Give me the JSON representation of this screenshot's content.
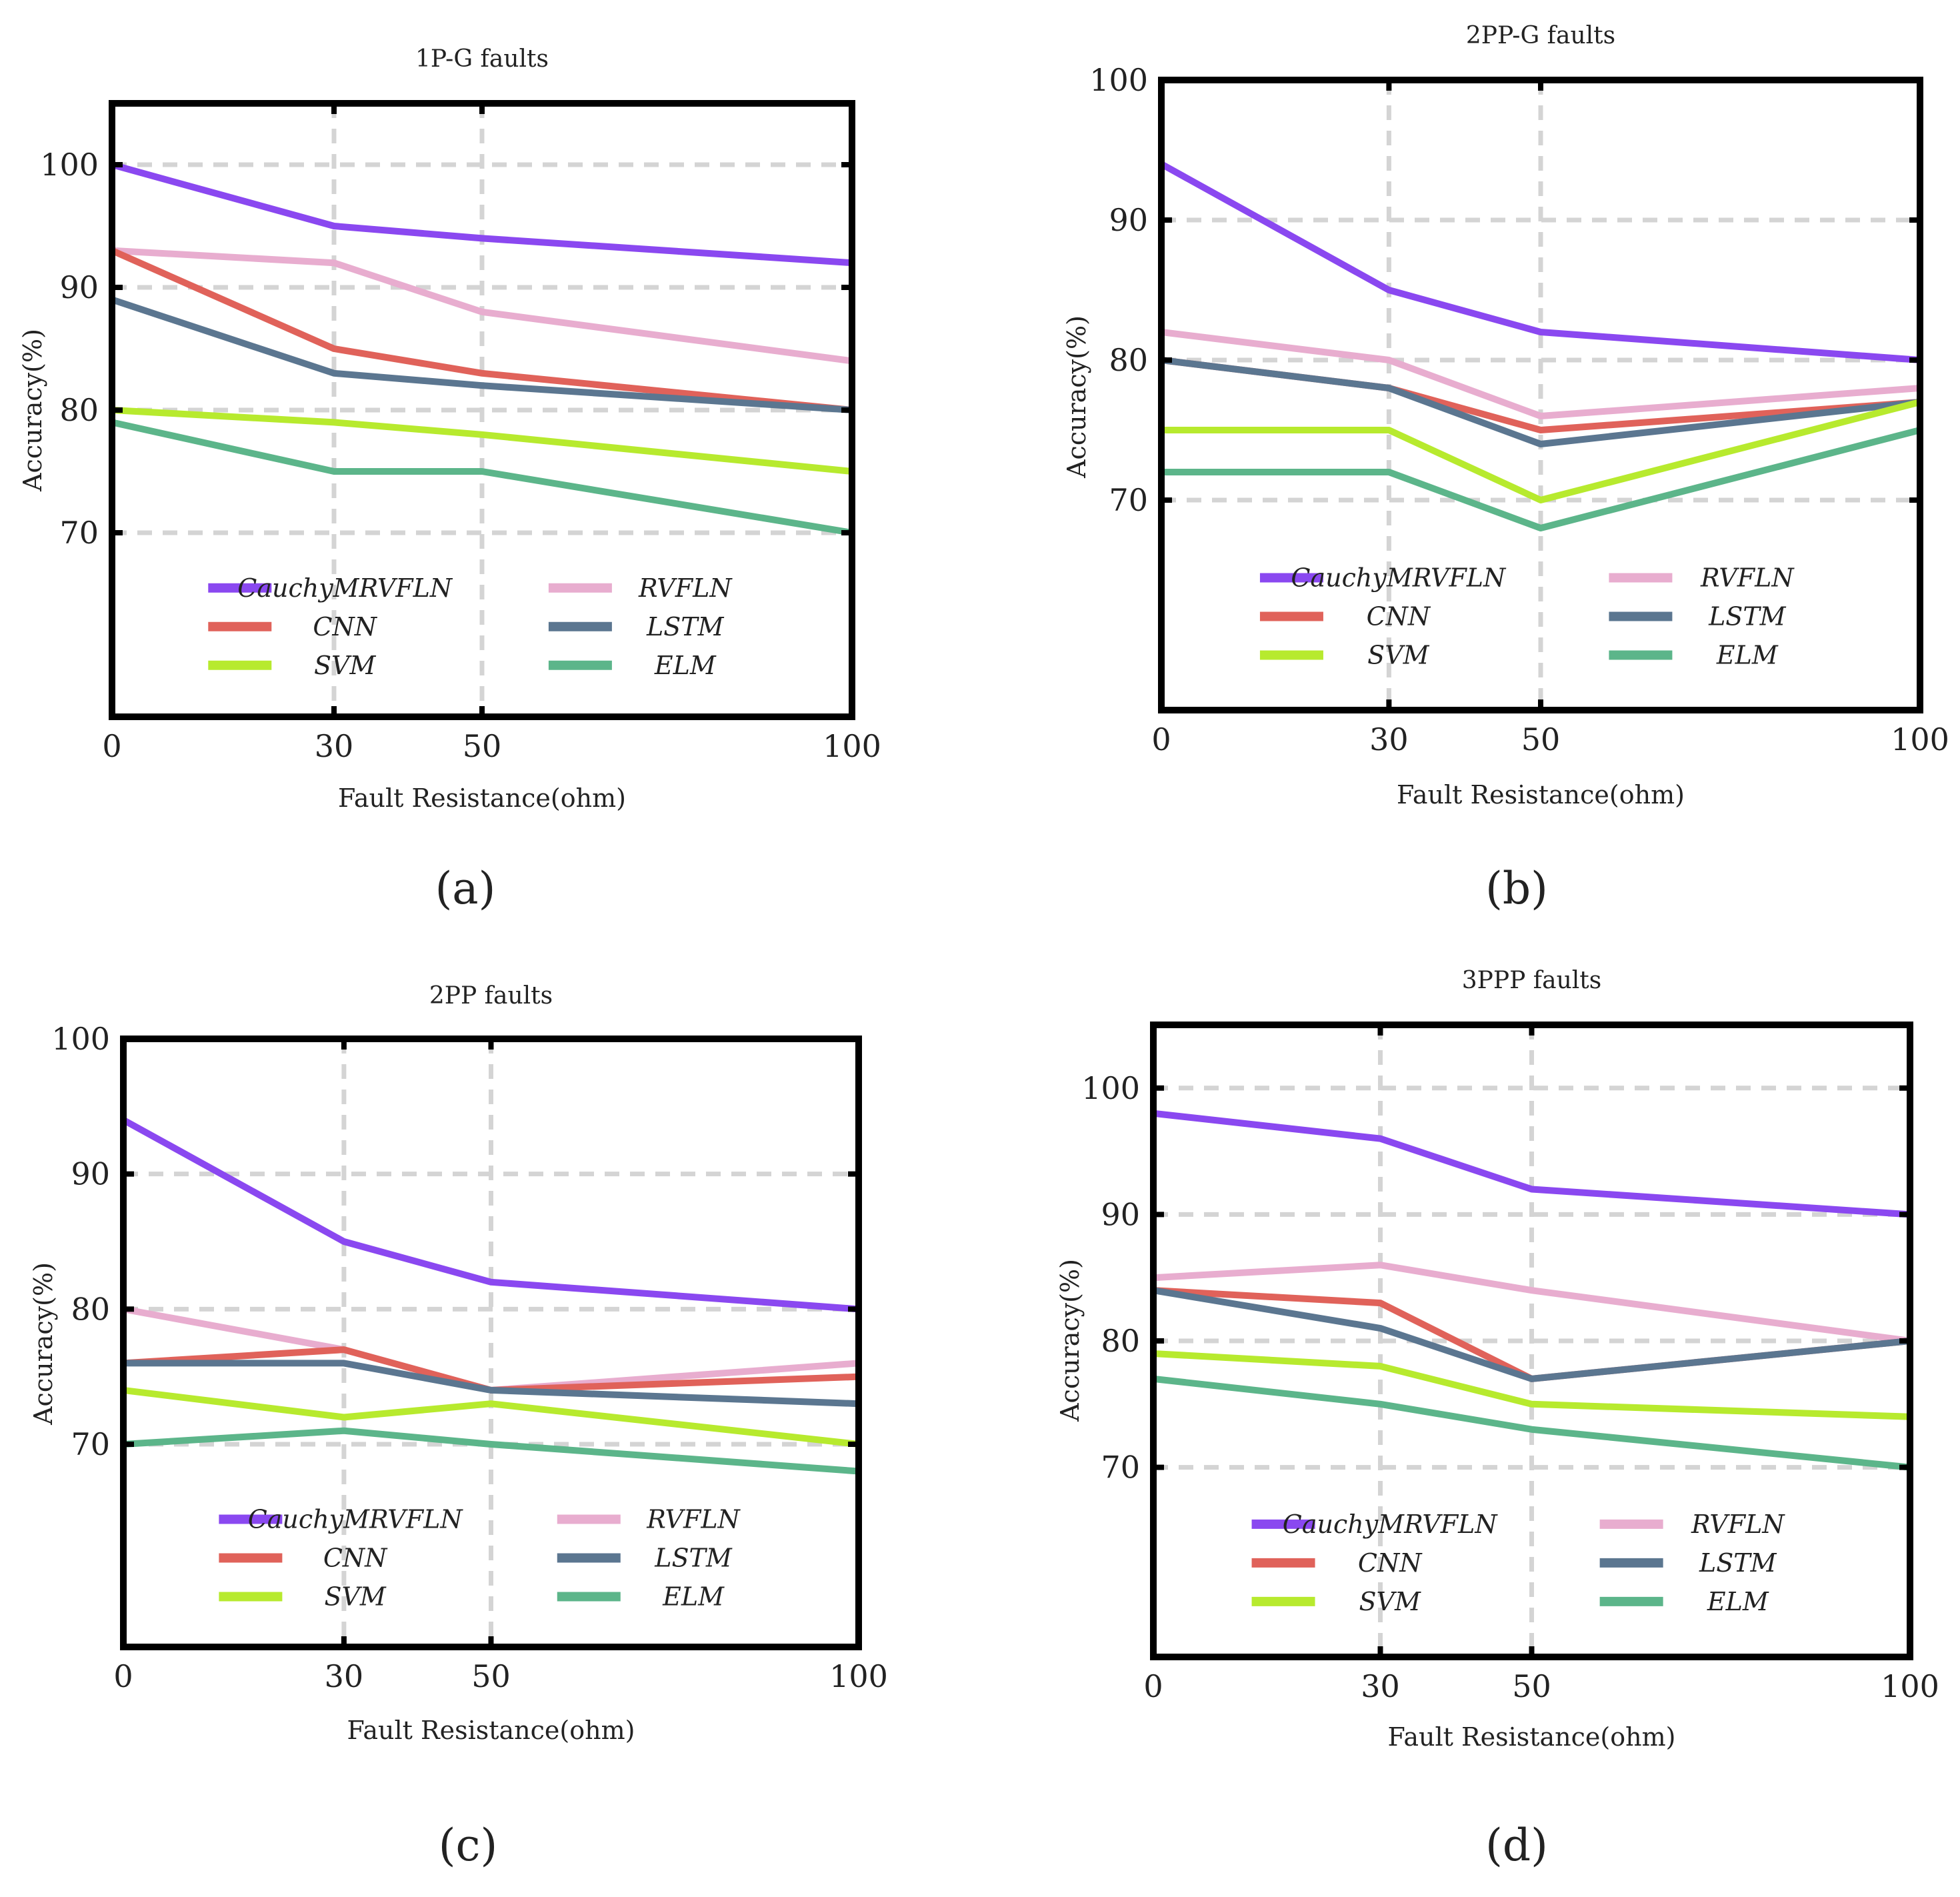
{
  "panel_labels": [
    "(a)",
    "(b)",
    "(c)",
    "(d)"
  ],
  "colors": {
    "CauchyMRVFLN": "#8a48f0",
    "RVFLN": "#e8adcf",
    "CNN": "#e0625a",
    "LSTM": "#5b7690",
    "SVM": "#b7ea2e",
    "ELM": "#5cb58a"
  },
  "chart_data": [
    {
      "type": "line",
      "title": "1P-G faults",
      "xlabel": "Fault Resistance(ohm)",
      "ylabel": "Accuracy(%)",
      "x": [
        0,
        30,
        50,
        100
      ],
      "xticks": [
        "0",
        "30",
        "50",
        "100"
      ],
      "yticks": [
        70,
        80,
        90,
        100
      ],
      "ylim": [
        55,
        105
      ],
      "grid": true,
      "legend": "lower center, 2 columns",
      "series": [
        {
          "name": "CauchyMRVFLN",
          "values": [
            100,
            95,
            94,
            92
          ]
        },
        {
          "name": "RVFLN",
          "values": [
            93,
            92,
            88,
            84
          ]
        },
        {
          "name": "CNN",
          "values": [
            93,
            85,
            83,
            80
          ]
        },
        {
          "name": "LSTM",
          "values": [
            89,
            83,
            82,
            80
          ]
        },
        {
          "name": "SVM",
          "values": [
            80,
            79,
            78,
            75
          ]
        },
        {
          "name": "ELM",
          "values": [
            79,
            75,
            75,
            70
          ]
        }
      ]
    },
    {
      "type": "line",
      "title": "2PP-G faults",
      "xlabel": "Fault Resistance(ohm)",
      "ylabel": "Accuracy(%)",
      "x": [
        0,
        30,
        50,
        100
      ],
      "xticks": [
        "0",
        "30",
        "50",
        "100"
      ],
      "yticks": [
        70,
        80,
        90,
        100
      ],
      "ylim": [
        55,
        100
      ],
      "grid": true,
      "legend": "lower center, 2 columns",
      "series": [
        {
          "name": "CauchyMRVFLN",
          "values": [
            94,
            85,
            82,
            80
          ]
        },
        {
          "name": "RVFLN",
          "values": [
            82,
            80,
            76,
            78
          ]
        },
        {
          "name": "CNN",
          "values": [
            80,
            78,
            75,
            77
          ]
        },
        {
          "name": "LSTM",
          "values": [
            80,
            78,
            74,
            77
          ]
        },
        {
          "name": "SVM",
          "values": [
            75,
            75,
            70,
            77
          ]
        },
        {
          "name": "ELM",
          "values": [
            72,
            72,
            68,
            75
          ]
        }
      ]
    },
    {
      "type": "line",
      "title": "2PP faults",
      "xlabel": "Fault Resistance(ohm)",
      "ylabel": "Accuracy(%)",
      "x": [
        0,
        30,
        50,
        100
      ],
      "xticks": [
        "0",
        "30",
        "50",
        "100"
      ],
      "yticks": [
        70,
        80,
        90,
        100
      ],
      "ylim": [
        55,
        100
      ],
      "grid": true,
      "legend": "lower center, 2 columns",
      "series": [
        {
          "name": "CauchyMRVFLN",
          "values": [
            94,
            85,
            82,
            80
          ]
        },
        {
          "name": "RVFLN",
          "values": [
            80,
            77,
            74,
            76
          ]
        },
        {
          "name": "CNN",
          "values": [
            76,
            77,
            74,
            75
          ]
        },
        {
          "name": "LSTM",
          "values": [
            76,
            76,
            74,
            73
          ]
        },
        {
          "name": "SVM",
          "values": [
            74,
            72,
            73,
            70
          ]
        },
        {
          "name": "ELM",
          "values": [
            70,
            71,
            70,
            68
          ]
        }
      ]
    },
    {
      "type": "line",
      "title": "3PPP faults",
      "xlabel": "Fault Resistance(ohm)",
      "ylabel": "Accuracy(%)",
      "x": [
        0,
        30,
        50,
        100
      ],
      "xticks": [
        "0",
        "30",
        "50",
        "100"
      ],
      "yticks": [
        70,
        80,
        90,
        100
      ],
      "ylim": [
        55,
        105
      ],
      "grid": true,
      "legend": "lower center, 2 columns",
      "series": [
        {
          "name": "CauchyMRVFLN",
          "values": [
            98,
            96,
            92,
            90
          ]
        },
        {
          "name": "RVFLN",
          "values": [
            85,
            86,
            84,
            80
          ]
        },
        {
          "name": "CNN",
          "values": [
            84,
            83,
            77,
            80
          ]
        },
        {
          "name": "LSTM",
          "values": [
            84,
            81,
            77,
            80
          ]
        },
        {
          "name": "SVM",
          "values": [
            79,
            78,
            75,
            74
          ]
        },
        {
          "name": "ELM",
          "values": [
            77,
            75,
            73,
            70
          ]
        }
      ]
    }
  ]
}
